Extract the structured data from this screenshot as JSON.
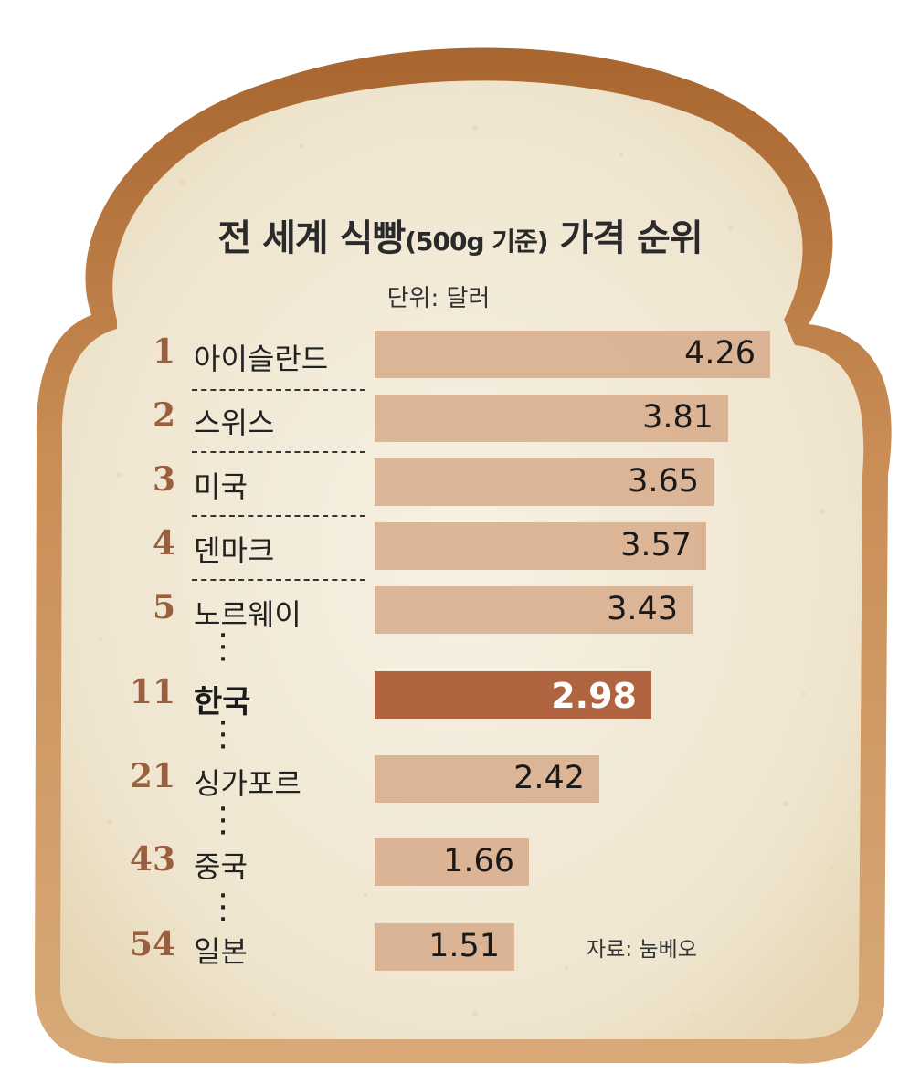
{
  "title_main": "전 세계 식빵",
  "title_paren": "(500g 기준)",
  "title_end": "가격 순위",
  "unit_label": "단위: 달러",
  "source_label": "자료: 눔베오",
  "colors": {
    "bar": "#d5a584",
    "bar_highlight": "#b0643f",
    "rank": "#9a5f3e",
    "crust": "#b5773f",
    "crumb": "#f2ead8"
  },
  "chart_data": {
    "type": "bar",
    "orientation": "horizontal",
    "highlight": "한국",
    "ranks": [
      "1",
      "2",
      "3",
      "4",
      "5",
      "11",
      "21",
      "43",
      "54"
    ],
    "categories": [
      "아이슬란드",
      "스위스",
      "미국",
      "덴마크",
      "노르웨이",
      "한국",
      "싱가포르",
      "중국",
      "일본"
    ],
    "values": [
      4.26,
      3.81,
      3.65,
      3.57,
      3.43,
      2.98,
      2.42,
      1.66,
      1.51
    ],
    "value_labels": [
      "4.26",
      "3.81",
      "3.65",
      "3.57",
      "3.43",
      "2.98",
      "2.42",
      "1.66",
      "1.51"
    ]
  }
}
